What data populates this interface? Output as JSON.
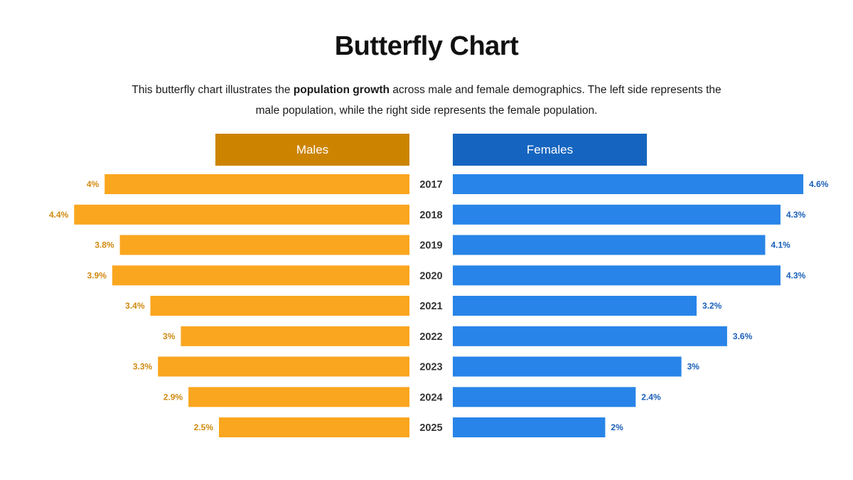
{
  "page": {
    "title": "Butterfly Chart",
    "description_before": "This butterfly chart illustrates the ",
    "description_bold": "population growth",
    "description_after": " across male and female demographics. The left side represents the male population, while the right side represents the female population."
  },
  "colors": {
    "male_bar": "#FAA61F",
    "male_header": "#CC8400",
    "male_label": "#D08A10",
    "female_bar": "#2884E8",
    "female_header": "#1565C0",
    "female_label": "#1A5FB8"
  },
  "chart_data": {
    "type": "bar",
    "orientation": "horizontal-butterfly",
    "categories": [
      "2017",
      "2018",
      "2019",
      "2020",
      "2021",
      "2022",
      "2023",
      "2024",
      "2025"
    ],
    "series": [
      {
        "name": "Males",
        "values": [
          4,
          4.4,
          3.8,
          3.9,
          3.4,
          3,
          3.3,
          2.9,
          2.5
        ],
        "labels": [
          "4%",
          "4.4%",
          "3.8%",
          "3.9%",
          "3.4%",
          "3%",
          "3.3%",
          "2.9%",
          "2.5%"
        ]
      },
      {
        "name": "Females",
        "values": [
          4.6,
          4.3,
          4.1,
          4.3,
          3.2,
          3.6,
          3,
          2.4,
          2
        ],
        "labels": [
          "4.6%",
          "4.3%",
          "4.1%",
          "4.3%",
          "3.2%",
          "3.6%",
          "3%",
          "2.4%",
          "2%"
        ]
      }
    ],
    "title": "Butterfly Chart",
    "xlabel": "",
    "ylabel": "",
    "grid": false,
    "legend": "top"
  }
}
